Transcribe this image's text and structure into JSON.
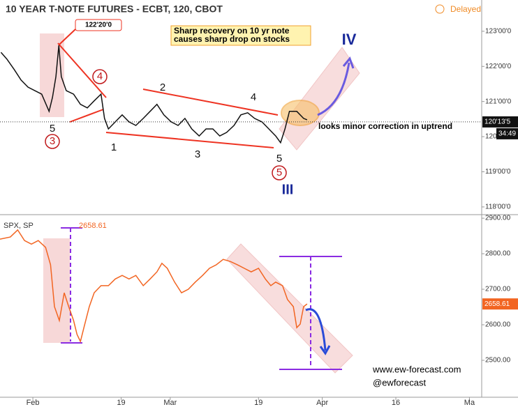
{
  "chart_data": [
    {
      "type": "line",
      "title": "10 YEAR T-NOTE FUTURES - ECBT, 120, CBOT",
      "status": "Delayed",
      "color": "#111111",
      "x": [
        -6.5,
        -5.3,
        -3.8,
        -2.4,
        -1.0,
        0.4,
        1.8,
        3.3,
        4.0,
        4.7,
        5.3,
        5.8,
        6.8,
        8.3,
        9.7,
        11.1,
        12.5,
        13.9,
        14.6,
        15.4,
        16.8,
        18.2,
        19.6,
        21.0,
        22.5,
        23.9,
        25.3,
        26.7,
        28.2,
        29.6,
        31.0,
        32.4,
        33.9,
        35.3,
        36.7,
        38.1,
        39.5,
        41.0,
        42.4,
        43.8,
        45.2,
        46.7,
        48.1,
        49.5,
        50.5,
        51.4,
        52.3,
        53.8,
        55.2,
        55.9
      ],
      "values": [
        122.4,
        122.21,
        121.91,
        121.61,
        121.41,
        121.31,
        121.21,
        120.72,
        121.12,
        121.71,
        122.6,
        121.71,
        121.31,
        121.21,
        120.92,
        120.82,
        121.02,
        121.21,
        120.52,
        120.22,
        120.42,
        120.62,
        120.42,
        120.32,
        120.52,
        120.72,
        120.92,
        120.62,
        120.42,
        120.32,
        120.52,
        120.22,
        120.02,
        120.22,
        120.22,
        120.02,
        120.12,
        120.32,
        120.62,
        120.68,
        120.52,
        120.42,
        120.22,
        120.02,
        119.83,
        120.22,
        120.72,
        120.72,
        120.52,
        120.48
      ],
      "xlim": [
        -6.7,
        91.5
      ],
      "ylim": [
        117.78,
        123.89
      ],
      "yticks": [
        {
          "value": 118,
          "label": "118'00'0"
        },
        {
          "value": 119,
          "label": "119'00'0"
        },
        {
          "value": 120,
          "label": "120'00'0"
        },
        {
          "value": 121,
          "label": "121'00'0"
        },
        {
          "value": 122,
          "label": "122'00'0"
        },
        {
          "value": 123,
          "label": "123'00'0"
        }
      ],
      "last_price": {
        "value": 120.42,
        "label": "120'13'5"
      },
      "timer": "34:49",
      "high_marker": {
        "value": 122.625,
        "label": "122'20'0"
      },
      "note": [
        "Sharp recovery on 10 yr note",
        "causes sharp drop on stocks"
      ],
      "annotations": [
        "5",
        "3",
        "4",
        "2",
        "1",
        "3",
        "4",
        "5",
        "5",
        "III",
        "IV",
        "looks minor correction in uptrend"
      ]
    },
    {
      "type": "line",
      "series": [
        {
          "name": "SPX, SP",
          "color": "#f26522",
          "x": [
            -6.7,
            -4.6,
            -3.1,
            -1.7,
            -0.3,
            1.1,
            2.6,
            3.6,
            4.4,
            5.4,
            6.4,
            7.3,
            8.3,
            9.0,
            9.7,
            10.4,
            11.5,
            12.5,
            13.9,
            15.4,
            16.8,
            18.2,
            19.6,
            21.0,
            22.5,
            23.9,
            25.3,
            26.3,
            27.4,
            28.9,
            30.3,
            31.7,
            33.1,
            34.6,
            36.0,
            37.4,
            38.8,
            40.3,
            41.7,
            43.1,
            44.5,
            46.0,
            47.4,
            48.5,
            49.5,
            50.9,
            51.9,
            53.1,
            53.8,
            54.5,
            55.2,
            55.9
          ],
          "values": [
            2841,
            2847,
            2867,
            2837,
            2827,
            2837,
            2818,
            2769,
            2651,
            2612,
            2690,
            2651,
            2612,
            2573,
            2553,
            2592,
            2651,
            2690,
            2710,
            2710,
            2729,
            2739,
            2729,
            2739,
            2710,
            2729,
            2749,
            2773,
            2759,
            2720,
            2690,
            2700,
            2720,
            2739,
            2759,
            2769,
            2784,
            2778,
            2769,
            2759,
            2749,
            2759,
            2729,
            2710,
            2720,
            2710,
            2671,
            2651,
            2592,
            2602,
            2651,
            2658.61
          ]
        }
      ],
      "xlim": [
        -6.7,
        91.5
      ],
      "xticks": [
        {
          "value": 0,
          "label": "Feb"
        },
        {
          "value": 18,
          "label": "19"
        },
        {
          "value": 28,
          "label": "Mar"
        },
        {
          "value": 46,
          "label": "19"
        },
        {
          "value": 59,
          "label": "Apr"
        },
        {
          "value": 74,
          "label": "16"
        },
        {
          "value": 89,
          "label": "Ma"
        }
      ],
      "ylim": [
        2396,
        2910
      ],
      "yticks": [
        {
          "value": 2500,
          "label": "2500.00"
        },
        {
          "value": 2600,
          "label": "2600.00"
        },
        {
          "value": 2700,
          "label": "2700.00"
        },
        {
          "value": 2800,
          "label": "2800.00"
        },
        {
          "value": 2900,
          "label": "2900.00"
        }
      ],
      "annotations": [
        "www.ew-forecast.com",
        "@ewforecast"
      ]
    }
  ]
}
